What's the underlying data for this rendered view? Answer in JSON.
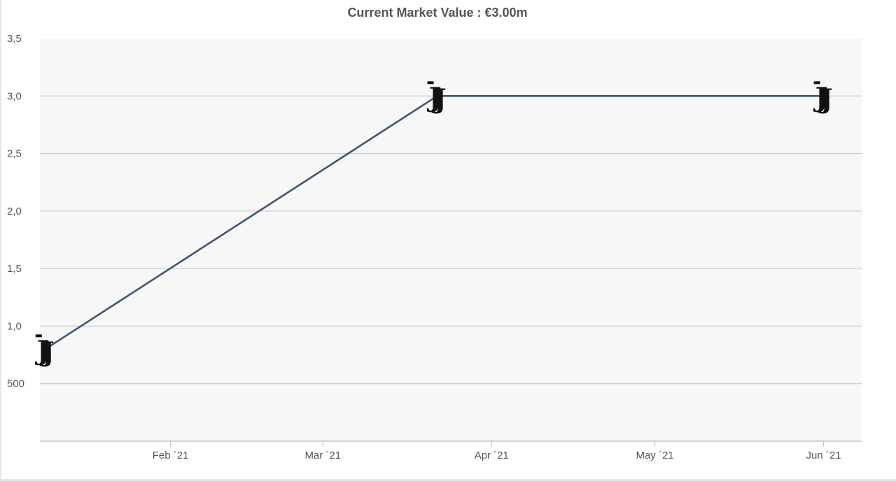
{
  "chart_data": {
    "type": "line",
    "title": "Current Market Value : €3.00m",
    "xlabel": "",
    "ylabel": "",
    "y_ticks": [
      "500",
      "1,0",
      "1,5",
      "2,0",
      "2,5",
      "3,0",
      "3,5"
    ],
    "y_tick_values": [
      0.5,
      1.0,
      1.5,
      2.0,
      2.5,
      3.0,
      3.5
    ],
    "ylim": [
      0.0,
      3.5
    ],
    "x_ticks": [
      "Feb ´21",
      "Mar ´21",
      "Apr ´21",
      "May ´21",
      "Jun ´21"
    ],
    "x_tick_values": [
      "2021-02-01",
      "2021-03-01",
      "2021-04-01",
      "2021-05-01",
      "2021-06-01"
    ],
    "xlim": [
      "2021-01-08",
      "2021-06-08"
    ],
    "series": [
      {
        "points": [
          {
            "date": "2021-01-09",
            "value": 0.8
          },
          {
            "date": "2021-03-22",
            "value": 3.0
          },
          {
            "date": "2021-06-01",
            "value": 3.0
          }
        ]
      }
    ],
    "marker_icon": "juventus-crest-icon",
    "grid": true,
    "legend": "none",
    "colors": {
      "line": "#3f5676",
      "plot_background": "#f7f7f7",
      "grid": "#cccccc",
      "axis": "#b7c8d6",
      "marker": "#111111"
    }
  }
}
